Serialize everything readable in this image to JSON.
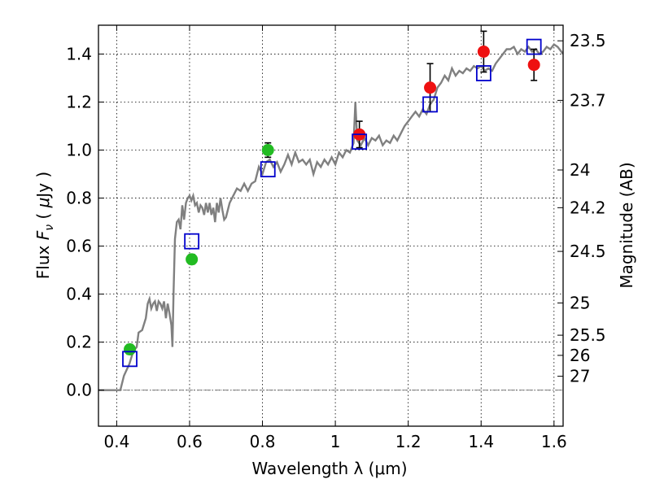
{
  "chart_data": {
    "type": "scatter",
    "xlabel": "Wavelength  λ (μm)",
    "ylabel": "Flux  F_ν  ( μJy )",
    "ylabel_right": "Magnitude (AB)",
    "xlim": [
      0.35,
      1.625
    ],
    "ylim": [
      -0.15,
      1.52
    ],
    "x_ticks": [
      0.4,
      0.6,
      0.8,
      1.0,
      1.2,
      1.4,
      1.6
    ],
    "x_tick_labels": [
      "0.4",
      "0.6",
      "0.8",
      "1",
      "1.2",
      "1.4",
      "1.6"
    ],
    "y_ticks": [
      0.0,
      0.2,
      0.4,
      0.6,
      0.8,
      1.0,
      1.2,
      1.4
    ],
    "y_tick_labels": [
      "0.0",
      "0.2",
      "0.4",
      "0.6",
      "0.8",
      "1.0",
      "1.2",
      "1.4"
    ],
    "right_ticks": [
      {
        "label": "23.5",
        "flux": 1.455
      },
      {
        "label": "23.7",
        "flux": 1.207
      },
      {
        "label": "24",
        "flux": 0.917
      },
      {
        "label": "24.2",
        "flux": 0.76
      },
      {
        "label": "24.5",
        "flux": 0.578
      },
      {
        "label": "25",
        "flux": 0.363
      },
      {
        "label": "25.5",
        "flux": 0.229
      },
      {
        "label": "26",
        "flux": 0.145
      },
      {
        "label": "27",
        "flux": 0.058
      }
    ],
    "grid": true,
    "series": [
      {
        "color": "#808080",
        "kind": "line",
        "points": [
          [
            0.35,
            0.0
          ],
          [
            0.41,
            0.0
          ],
          [
            0.42,
            0.06
          ],
          [
            0.435,
            0.11
          ],
          [
            0.445,
            0.16
          ],
          [
            0.455,
            0.18
          ],
          [
            0.46,
            0.24
          ],
          [
            0.47,
            0.25
          ],
          [
            0.48,
            0.3
          ],
          [
            0.485,
            0.36
          ],
          [
            0.49,
            0.38
          ],
          [
            0.495,
            0.34
          ],
          [
            0.5,
            0.36
          ],
          [
            0.505,
            0.37
          ],
          [
            0.51,
            0.33
          ],
          [
            0.515,
            0.37
          ],
          [
            0.52,
            0.36
          ],
          [
            0.525,
            0.34
          ],
          [
            0.53,
            0.37
          ],
          [
            0.535,
            0.3
          ],
          [
            0.54,
            0.36
          ],
          [
            0.545,
            0.32
          ],
          [
            0.55,
            0.27
          ],
          [
            0.553,
            0.18
          ],
          [
            0.556,
            0.41
          ],
          [
            0.56,
            0.63
          ],
          [
            0.565,
            0.7
          ],
          [
            0.57,
            0.71
          ],
          [
            0.575,
            0.67
          ],
          [
            0.58,
            0.77
          ],
          [
            0.585,
            0.71
          ],
          [
            0.59,
            0.78
          ],
          [
            0.595,
            0.8
          ],
          [
            0.6,
            0.81
          ],
          [
            0.605,
            0.79
          ],
          [
            0.61,
            0.81
          ],
          [
            0.615,
            0.77
          ],
          [
            0.62,
            0.78
          ],
          [
            0.625,
            0.74
          ],
          [
            0.63,
            0.77
          ],
          [
            0.635,
            0.76
          ],
          [
            0.64,
            0.73
          ],
          [
            0.645,
            0.78
          ],
          [
            0.65,
            0.74
          ],
          [
            0.655,
            0.78
          ],
          [
            0.66,
            0.73
          ],
          [
            0.665,
            0.76
          ],
          [
            0.67,
            0.7
          ],
          [
            0.675,
            0.78
          ],
          [
            0.68,
            0.74
          ],
          [
            0.685,
            0.8
          ],
          [
            0.69,
            0.75
          ],
          [
            0.695,
            0.71
          ],
          [
            0.7,
            0.72
          ],
          [
            0.71,
            0.78
          ],
          [
            0.72,
            0.81
          ],
          [
            0.73,
            0.84
          ],
          [
            0.74,
            0.83
          ],
          [
            0.75,
            0.86
          ],
          [
            0.76,
            0.83
          ],
          [
            0.77,
            0.86
          ],
          [
            0.78,
            0.87
          ],
          [
            0.79,
            0.93
          ],
          [
            0.8,
            0.9
          ],
          [
            0.81,
            0.95
          ],
          [
            0.82,
            0.96
          ],
          [
            0.83,
            0.93
          ],
          [
            0.84,
            0.95
          ],
          [
            0.85,
            0.91
          ],
          [
            0.86,
            0.94
          ],
          [
            0.87,
            0.98
          ],
          [
            0.88,
            0.94
          ],
          [
            0.89,
            0.99
          ],
          [
            0.9,
            0.95
          ],
          [
            0.91,
            0.96
          ],
          [
            0.92,
            0.94
          ],
          [
            0.93,
            0.96
          ],
          [
            0.94,
            0.9
          ],
          [
            0.95,
            0.95
          ],
          [
            0.96,
            0.93
          ],
          [
            0.97,
            0.96
          ],
          [
            0.98,
            0.94
          ],
          [
            0.99,
            0.97
          ],
          [
            1.0,
            0.94
          ],
          [
            1.01,
            0.99
          ],
          [
            1.02,
            0.97
          ],
          [
            1.03,
            1.0
          ],
          [
            1.04,
            0.99
          ],
          [
            1.05,
            1.03
          ],
          [
            1.055,
            1.2
          ],
          [
            1.06,
            1.04
          ],
          [
            1.07,
            1.02
          ],
          [
            1.08,
            1.05
          ],
          [
            1.09,
            1.02
          ],
          [
            1.1,
            1.05
          ],
          [
            1.11,
            1.04
          ],
          [
            1.12,
            1.06
          ],
          [
            1.13,
            1.02
          ],
          [
            1.14,
            1.04
          ],
          [
            1.15,
            1.03
          ],
          [
            1.16,
            1.06
          ],
          [
            1.17,
            1.04
          ],
          [
            1.18,
            1.07
          ],
          [
            1.19,
            1.1
          ],
          [
            1.2,
            1.12
          ],
          [
            1.21,
            1.14
          ],
          [
            1.22,
            1.16
          ],
          [
            1.23,
            1.14
          ],
          [
            1.24,
            1.17
          ],
          [
            1.25,
            1.15
          ],
          [
            1.26,
            1.19
          ],
          [
            1.27,
            1.21
          ],
          [
            1.28,
            1.26
          ],
          [
            1.29,
            1.28
          ],
          [
            1.3,
            1.31
          ],
          [
            1.31,
            1.29
          ],
          [
            1.32,
            1.34
          ],
          [
            1.33,
            1.31
          ],
          [
            1.34,
            1.33
          ],
          [
            1.35,
            1.32
          ],
          [
            1.36,
            1.34
          ],
          [
            1.37,
            1.33
          ],
          [
            1.38,
            1.35
          ],
          [
            1.39,
            1.34
          ],
          [
            1.4,
            1.35
          ],
          [
            1.41,
            1.33
          ],
          [
            1.42,
            1.34
          ],
          [
            1.43,
            1.33
          ],
          [
            1.44,
            1.36
          ],
          [
            1.45,
            1.38
          ],
          [
            1.46,
            1.4
          ],
          [
            1.47,
            1.42
          ],
          [
            1.48,
            1.42
          ],
          [
            1.49,
            1.43
          ],
          [
            1.5,
            1.4
          ],
          [
            1.51,
            1.42
          ],
          [
            1.52,
            1.41
          ],
          [
            1.53,
            1.43
          ],
          [
            1.54,
            1.41
          ],
          [
            1.55,
            1.42
          ],
          [
            1.56,
            1.4
          ],
          [
            1.57,
            1.41
          ],
          [
            1.58,
            1.43
          ],
          [
            1.59,
            1.42
          ],
          [
            1.6,
            1.44
          ],
          [
            1.61,
            1.43
          ],
          [
            1.62,
            1.41
          ],
          [
            1.625,
            1.4
          ]
        ]
      },
      {
        "color": "#22bb22",
        "kind": "points",
        "marker": "circle",
        "points": [
          {
            "x": 0.436,
            "y": 0.17,
            "err": 0.02
          },
          {
            "x": 0.606,
            "y": 0.545,
            "err": 0.02
          },
          {
            "x": 0.815,
            "y": 1.0,
            "err": 0.03
          }
        ]
      },
      {
        "color": "#ee1111",
        "kind": "points",
        "marker": "circle",
        "points": [
          {
            "x": 1.066,
            "y": 1.065,
            "err": 0.055
          },
          {
            "x": 1.26,
            "y": 1.26,
            "err": 0.1
          },
          {
            "x": 1.407,
            "y": 1.41,
            "err": 0.085
          },
          {
            "x": 1.545,
            "y": 1.355,
            "err": 0.065
          }
        ]
      },
      {
        "color": "#0000cc",
        "kind": "points",
        "marker": "open-square",
        "points": [
          {
            "x": 0.436,
            "y": 0.13
          },
          {
            "x": 0.606,
            "y": 0.62
          },
          {
            "x": 0.815,
            "y": 0.92
          },
          {
            "x": 1.066,
            "y": 1.035
          },
          {
            "x": 1.26,
            "y": 1.19
          },
          {
            "x": 1.407,
            "y": 1.32
          },
          {
            "x": 1.545,
            "y": 1.43
          }
        ]
      }
    ]
  }
}
